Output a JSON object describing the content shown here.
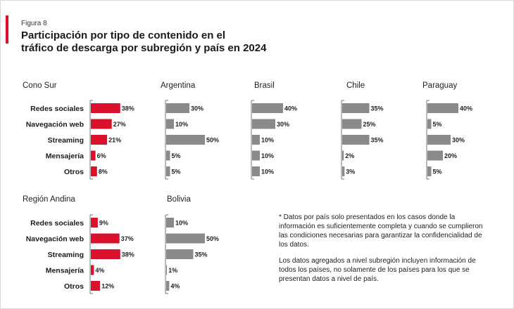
{
  "figure": {
    "label": "Figura 8",
    "title_line1": "Participación por tipo de contenido en el",
    "title_line2": "tráfico de descarga por subregión y país en 2024"
  },
  "colors": {
    "accent": "#d9112a",
    "region_bar": "#d9112a",
    "country_bar": "#8a8a8a"
  },
  "categories": [
    "Redes sociales",
    "Navegación web",
    "Streaming",
    "Mensajería",
    "Otros"
  ],
  "chart_data": [
    {
      "type": "bar",
      "title": "Cono Sur",
      "kind": "region",
      "categories": [
        "Redes sociales",
        "Navegación web",
        "Streaming",
        "Mensajería",
        "Otros"
      ],
      "values": [
        38,
        27,
        21,
        6,
        8
      ],
      "labels": [
        "38%",
        "27%",
        "21%",
        "6%",
        "8%"
      ]
    },
    {
      "type": "bar",
      "title": "Argentina",
      "kind": "country",
      "values": [
        30,
        10,
        50,
        5,
        5
      ],
      "labels": [
        "30%",
        "10%",
        "50%",
        "5%",
        "5%"
      ]
    },
    {
      "type": "bar",
      "title": "Brasil",
      "kind": "country",
      "values": [
        40,
        30,
        10,
        10,
        10
      ],
      "labels": [
        "40%",
        "30%",
        "10%",
        "10%",
        "10%"
      ]
    },
    {
      "type": "bar",
      "title": "Chile",
      "kind": "country",
      "values": [
        35,
        25,
        35,
        2,
        3
      ],
      "labels": [
        "35%",
        "25%",
        "35%",
        "2%",
        "3%"
      ]
    },
    {
      "type": "bar",
      "title": "Paraguay",
      "kind": "country",
      "values": [
        40,
        5,
        30,
        20,
        5
      ],
      "labels": [
        "40%",
        "5%",
        "30%",
        "20%",
        "5%"
      ]
    },
    {
      "type": "bar",
      "title": "Región Andina",
      "kind": "region",
      "categories": [
        "Redes sociales",
        "Navegación web",
        "Streaming",
        "Mensajería",
        "Otros"
      ],
      "values": [
        9,
        37,
        38,
        4,
        12
      ],
      "labels": [
        "9%",
        "37%",
        "38%",
        "4%",
        "12%"
      ]
    },
    {
      "type": "bar",
      "title": "Bolivia",
      "kind": "country",
      "values": [
        10,
        50,
        35,
        1,
        4
      ],
      "labels": [
        "10%",
        "50%",
        "35%",
        "1%",
        "4%"
      ]
    }
  ],
  "note": {
    "para1": "* Datos por país solo presentados en los casos donde la información es suficientemente completa y cuando se cumplieron las condiciones necesarias para garantizar la confidencialidad de los datos.",
    "para2": "Los datos agregados a nivel subregión incluyen información de todos los países, no solamente de los países para los que se presentan datos a nivel de país."
  }
}
